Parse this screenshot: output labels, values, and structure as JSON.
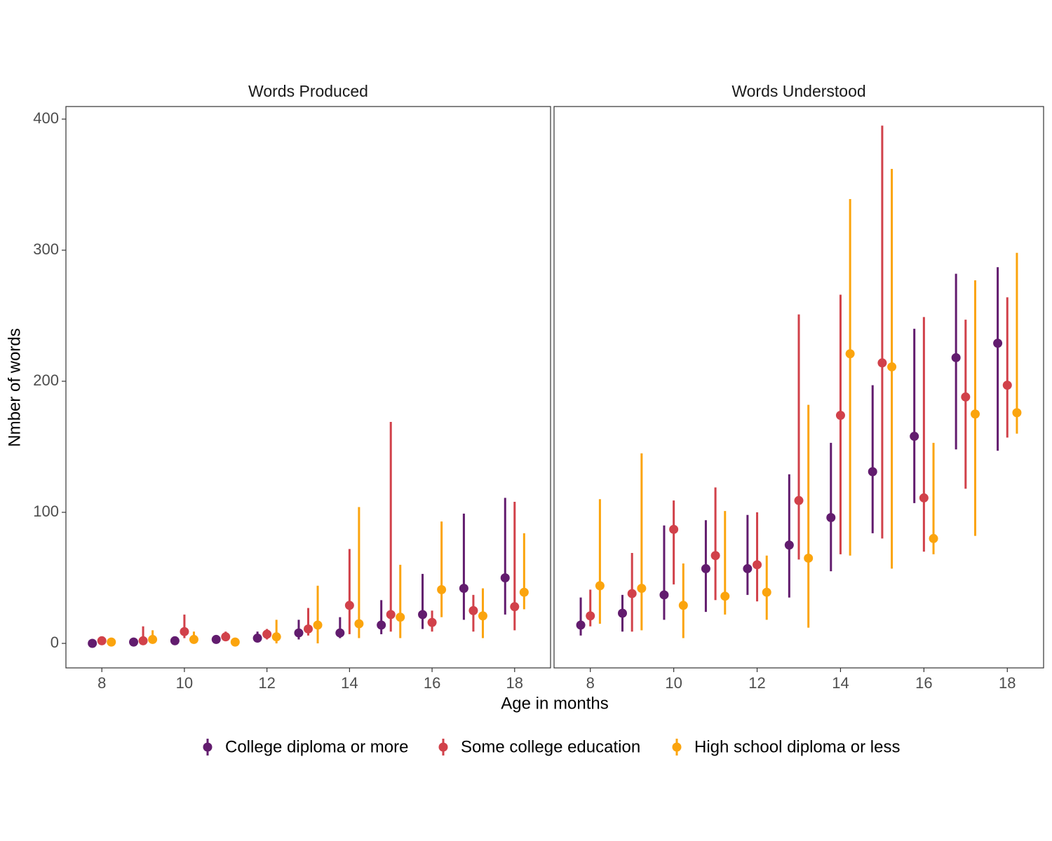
{
  "chart_data": {
    "type": "pointrange",
    "x_label": "Age in months",
    "y_label": "Nmber of words",
    "x": [
      8,
      9,
      10,
      11,
      12,
      13,
      14,
      15,
      16,
      17,
      18
    ],
    "xlim": [
      7.13,
      18.87
    ],
    "xticks": [
      8,
      10,
      12,
      14,
      16,
      18
    ],
    "ylim": [
      -18.7,
      409.6
    ],
    "yticks": [
      0,
      100,
      200,
      300,
      400
    ],
    "grid": false,
    "legend": "bottom",
    "series_styles": [
      {
        "name": "College diploma or more",
        "color": "#621c6e"
      },
      {
        "name": "Some college education",
        "color": "#d1414a"
      },
      {
        "name": "High school diploma or less",
        "color": "#fba40d"
      }
    ],
    "facets": [
      {
        "title": "Words Produced",
        "series": [
          {
            "values": [
              0,
              1,
              2,
              3,
              4,
              8,
              8,
              14,
              22,
              42,
              50
            ],
            "lower": [
              0,
              0,
              0,
              1,
              1,
              3,
              4,
              7,
              11,
              18,
              22
            ],
            "upper": [
              1,
              2,
              4,
              6,
              9,
              18,
              20,
              33,
              53,
              99,
              111
            ]
          },
          {
            "values": [
              2,
              2,
              9,
              5,
              7,
              11,
              29,
              22,
              16,
              25,
              28
            ],
            "lower": [
              0,
              0,
              4,
              2,
              3,
              6,
              7,
              9,
              9,
              9,
              10
            ],
            "upper": [
              4,
              13,
              22,
              9,
              11,
              27,
              72,
              169,
              25,
              37,
              108
            ]
          },
          {
            "values": [
              1,
              3,
              3,
              1,
              5,
              14,
              15,
              20,
              41,
              21,
              39
            ],
            "lower": [
              0,
              1,
              1,
              0,
              0,
              0,
              4,
              4,
              20,
              4,
              26
            ],
            "upper": [
              2,
              10,
              9,
              4,
              18,
              44,
              104,
              60,
              93,
              42,
              84
            ]
          }
        ]
      },
      {
        "title": "Words Understood",
        "series": [
          {
            "values": [
              14,
              23,
              37,
              57,
              57,
              75,
              96,
              131,
              158,
              218,
              229
            ],
            "lower": [
              6,
              9,
              18,
              24,
              37,
              35,
              55,
              84,
              107,
              148,
              147
            ],
            "upper": [
              35,
              37,
              90,
              94,
              98,
              129,
              153,
              197,
              240,
              282,
              287
            ]
          },
          {
            "values": [
              21,
              38,
              87,
              67,
              60,
              109,
              174,
              214,
              111,
              188,
              197
            ],
            "lower": [
              13,
              9,
              45,
              33,
              32,
              64,
              68,
              80,
              70,
              118,
              157
            ],
            "upper": [
              41,
              69,
              109,
              119,
              100,
              251,
              266,
              395,
              249,
              247,
              264
            ]
          },
          {
            "values": [
              44,
              42,
              29,
              36,
              39,
              65,
              221,
              211,
              80,
              175,
              176
            ],
            "lower": [
              15,
              10,
              4,
              22,
              18,
              12,
              67,
              57,
              68,
              82,
              160
            ],
            "upper": [
              110,
              145,
              61,
              101,
              67,
              182,
              339,
              362,
              153,
              277,
              298
            ]
          }
        ]
      }
    ]
  }
}
